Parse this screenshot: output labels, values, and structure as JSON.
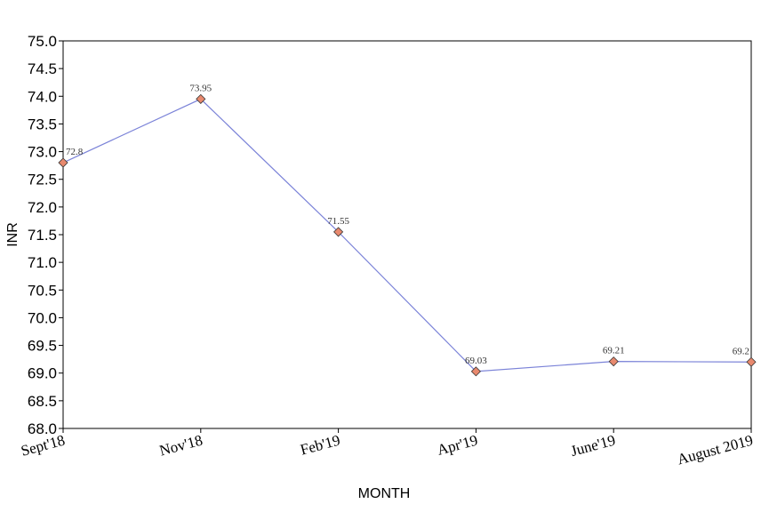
{
  "chart_data": {
    "type": "line",
    "xlabel": "MONTH",
    "ylabel": "INR",
    "categories": [
      "Sept'18",
      "Nov'18",
      "Feb'19",
      "Apr'19",
      "June'19",
      "August 2019"
    ],
    "series": [
      {
        "values": [
          72.8,
          73.95,
          71.55,
          69.03,
          69.21,
          69.2
        ],
        "data_labels": [
          "72.8",
          "73.95",
          "71.55",
          "69.03",
          "69.21",
          "69.2"
        ],
        "line_color": "#7b83d8",
        "marker_color": "#e8896e",
        "marker": "diamond"
      }
    ],
    "ylim": [
      68.0,
      75.0
    ],
    "ytick_step": 0.5,
    "ytick_labels": [
      "68.0",
      "68.5",
      "69.0",
      "69.5",
      "70.0",
      "70.5",
      "71.0",
      "71.5",
      "72.0",
      "72.5",
      "73.0",
      "73.5",
      "74.0",
      "74.5",
      "75.0"
    ],
    "grid": false,
    "legend": "none"
  }
}
